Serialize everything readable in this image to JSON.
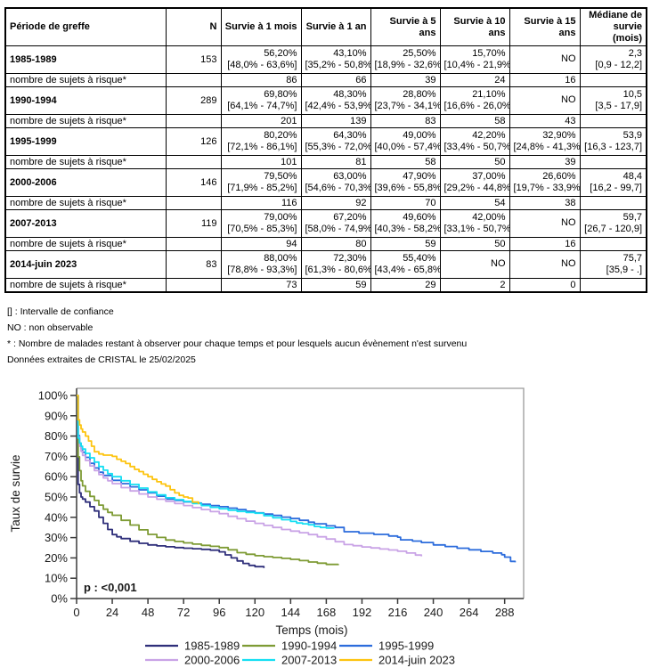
{
  "table": {
    "headers": [
      "Période de greffe",
      "N",
      "Survie à 1 mois",
      "Survie à 1 an",
      "Survie à 5 ans",
      "Survie à 10 ans",
      "Survie à 15 ans",
      "Médiane de survie (mois)"
    ],
    "risk_label": "nombre de sujets à risque*",
    "rows": [
      {
        "period": "1985-1989",
        "n": "153",
        "cells": [
          {
            "v": "56,20%",
            "ci": "[48,0% - 63,6%]"
          },
          {
            "v": "43,10%",
            "ci": "[35,2% - 50,8%]"
          },
          {
            "v": "25,50%",
            "ci": "[18,9% - 32,6%]"
          },
          {
            "v": "15,70%",
            "ci": "[10,4% - 21,9%]"
          },
          {
            "v": "NO",
            "ci": ""
          },
          {
            "v": "2,3",
            "ci": "[0,9 - 12,2]"
          }
        ],
        "at_risk": [
          "86",
          "66",
          "39",
          "24",
          "16"
        ]
      },
      {
        "period": "1990-1994",
        "n": "289",
        "cells": [
          {
            "v": "69,80%",
            "ci": "[64,1% - 74,7%]"
          },
          {
            "v": "48,30%",
            "ci": "[42,4% - 53,9%]"
          },
          {
            "v": "28,80%",
            "ci": "[23,7% - 34,1%]"
          },
          {
            "v": "21,10%",
            "ci": "[16,6% - 26,0%]"
          },
          {
            "v": "NO",
            "ci": ""
          },
          {
            "v": "10,5",
            "ci": "[3,5 - 17,9]"
          }
        ],
        "at_risk": [
          "201",
          "139",
          "83",
          "58",
          "43"
        ]
      },
      {
        "period": "1995-1999",
        "n": "126",
        "cells": [
          {
            "v": "80,20%",
            "ci": "[72,1% - 86,1%]"
          },
          {
            "v": "64,30%",
            "ci": "[55,3% - 72,0%]"
          },
          {
            "v": "49,00%",
            "ci": "[40,0% - 57,4%]"
          },
          {
            "v": "42,20%",
            "ci": "[33,4% - 50,7%]"
          },
          {
            "v": "32,90%",
            "ci": "[24,8% - 41,3%]"
          },
          {
            "v": "53,9",
            "ci": "[16,3 - 123,7]"
          }
        ],
        "at_risk": [
          "101",
          "81",
          "58",
          "50",
          "39"
        ]
      },
      {
        "period": "2000-2006",
        "n": "146",
        "cells": [
          {
            "v": "79,50%",
            "ci": "[71,9% - 85,2%]"
          },
          {
            "v": "63,00%",
            "ci": "[54,6% - 70,3%]"
          },
          {
            "v": "47,90%",
            "ci": "[39,6% - 55,8%]"
          },
          {
            "v": "37,00%",
            "ci": "[29,2% - 44,8%]"
          },
          {
            "v": "26,60%",
            "ci": "[19,7% - 33,9%]"
          },
          {
            "v": "48,4",
            "ci": "[16,2 - 99,7]"
          }
        ],
        "at_risk": [
          "116",
          "92",
          "70",
          "54",
          "38"
        ]
      },
      {
        "period": "2007-2013",
        "n": "119",
        "cells": [
          {
            "v": "79,00%",
            "ci": "[70,5% - 85,3%]"
          },
          {
            "v": "67,20%",
            "ci": "[58,0% - 74,9%]"
          },
          {
            "v": "49,60%",
            "ci": "[40,3% - 58,2%]"
          },
          {
            "v": "42,00%",
            "ci": "[33,1% - 50,7%]"
          },
          {
            "v": "NO",
            "ci": ""
          },
          {
            "v": "59,7",
            "ci": "[26,7 - 120,9]"
          }
        ],
        "at_risk": [
          "94",
          "80",
          "59",
          "50",
          "16"
        ]
      },
      {
        "period": "2014-juin 2023",
        "n": "83",
        "cells": [
          {
            "v": "88,00%",
            "ci": "[78,8% - 93,3%]"
          },
          {
            "v": "72,30%",
            "ci": "[61,3% - 80,6%]"
          },
          {
            "v": "55,40%",
            "ci": "[43,4% - 65,8%]"
          },
          {
            "v": "NO",
            "ci": ""
          },
          {
            "v": "NO",
            "ci": ""
          },
          {
            "v": "75,7",
            "ci": "[35,9 - .]"
          }
        ],
        "at_risk": [
          "73",
          "59",
          "29",
          "2",
          "0"
        ]
      }
    ]
  },
  "footnotes": [
    "[] : Intervalle de confiance",
    "NO : non observable",
    "* : Nombre de malades restant à observer pour chaque temps et pour lesquels aucun évènement n'est survenu",
    "Données extraites de CRISTAL le 25/02/2025"
  ],
  "chart_data": {
    "type": "line",
    "subtype": "kaplan-meier-step",
    "title": "",
    "xlabel": "Temps (mois)",
    "ylabel": "Taux de survie",
    "annotation": "p : <0,001",
    "xlim": [
      0,
      300
    ],
    "ylim": [
      0,
      100
    ],
    "x_ticks": [
      0,
      24,
      48,
      72,
      96,
      120,
      144,
      168,
      192,
      216,
      240,
      264,
      288
    ],
    "y_ticks": [
      0,
      10,
      20,
      30,
      40,
      50,
      60,
      70,
      80,
      90,
      100
    ],
    "y_tick_suffix": "%",
    "grid": false,
    "legend_position": "bottom",
    "series": [
      {
        "name": "1985-1989",
        "color": "#2f2f7a",
        "points": [
          [
            0,
            100
          ],
          [
            1,
            56.2
          ],
          [
            2,
            52
          ],
          [
            3,
            50
          ],
          [
            4,
            49
          ],
          [
            6,
            47.5
          ],
          [
            9,
            45.2
          ],
          [
            12,
            43.1
          ],
          [
            15,
            40
          ],
          [
            18,
            37
          ],
          [
            21,
            34
          ],
          [
            24,
            31.5
          ],
          [
            27,
            30.4
          ],
          [
            30,
            29.5
          ],
          [
            36,
            28.2
          ],
          [
            42,
            27.2
          ],
          [
            48,
            26.4
          ],
          [
            54,
            25.9
          ],
          [
            60,
            25.5
          ],
          [
            66,
            25.1
          ],
          [
            72,
            24.8
          ],
          [
            78,
            24.5
          ],
          [
            84,
            24.2
          ],
          [
            90,
            23.8
          ],
          [
            96,
            23
          ],
          [
            100,
            21.5
          ],
          [
            104,
            20
          ],
          [
            108,
            18.5
          ],
          [
            112,
            17.3
          ],
          [
            116,
            16.3
          ],
          [
            120,
            15.7
          ],
          [
            126,
            15
          ]
        ]
      },
      {
        "name": "1990-1994",
        "color": "#7e9b34",
        "points": [
          [
            0,
            100
          ],
          [
            1,
            69.8
          ],
          [
            2,
            63
          ],
          [
            3,
            58
          ],
          [
            4,
            55.5
          ],
          [
            6,
            52.8
          ],
          [
            9,
            50.3
          ],
          [
            12,
            48.3
          ],
          [
            15,
            46
          ],
          [
            18,
            44
          ],
          [
            21,
            42.4
          ],
          [
            24,
            41
          ],
          [
            30,
            38.5
          ],
          [
            36,
            36.2
          ],
          [
            42,
            33.8
          ],
          [
            48,
            31.6
          ],
          [
            54,
            30.1
          ],
          [
            60,
            28.8
          ],
          [
            66,
            28.1
          ],
          [
            72,
            27.4
          ],
          [
            78,
            26.8
          ],
          [
            84,
            26.2
          ],
          [
            90,
            25.7
          ],
          [
            96,
            25.1
          ],
          [
            102,
            24
          ],
          [
            108,
            22.6
          ],
          [
            114,
            21.8
          ],
          [
            120,
            21.1
          ],
          [
            126,
            20.6
          ],
          [
            132,
            20.2
          ],
          [
            138,
            19.8
          ],
          [
            144,
            19.3
          ],
          [
            150,
            18.7
          ],
          [
            156,
            18
          ],
          [
            162,
            17.4
          ],
          [
            168,
            16.8
          ],
          [
            176,
            16.4
          ]
        ]
      },
      {
        "name": "1995-1999",
        "color": "#2c6cdc",
        "points": [
          [
            0,
            100
          ],
          [
            1,
            80.2
          ],
          [
            2,
            76.5
          ],
          [
            3,
            74
          ],
          [
            4,
            72
          ],
          [
            6,
            69.5
          ],
          [
            9,
            66.6
          ],
          [
            12,
            64.3
          ],
          [
            15,
            62.2
          ],
          [
            18,
            60.6
          ],
          [
            24,
            58.2
          ],
          [
            30,
            56.6
          ],
          [
            36,
            55
          ],
          [
            42,
            53.5
          ],
          [
            48,
            52
          ],
          [
            54,
            50.4
          ],
          [
            60,
            49
          ],
          [
            66,
            48.3
          ],
          [
            72,
            47.6
          ],
          [
            78,
            47
          ],
          [
            84,
            46.4
          ],
          [
            90,
            45.8
          ],
          [
            96,
            45.2
          ],
          [
            102,
            44.5
          ],
          [
            108,
            43.8
          ],
          [
            114,
            43
          ],
          [
            120,
            42.2
          ],
          [
            126,
            41.6
          ],
          [
            132,
            40.9
          ],
          [
            138,
            40.1
          ],
          [
            144,
            39.4
          ],
          [
            150,
            38.5
          ],
          [
            156,
            37.6
          ],
          [
            160,
            36.8
          ],
          [
            168,
            35.8
          ],
          [
            174,
            35
          ],
          [
            180,
            32.9
          ],
          [
            190,
            32.2
          ],
          [
            200,
            31.6
          ],
          [
            210,
            30.8
          ],
          [
            216,
            30.2
          ],
          [
            218,
            28.9
          ],
          [
            226,
            28.3
          ],
          [
            232,
            27.6
          ],
          [
            240,
            26.4
          ],
          [
            248,
            25.6
          ],
          [
            256,
            24.8
          ],
          [
            264,
            24
          ],
          [
            272,
            23.2
          ],
          [
            280,
            22.4
          ],
          [
            286,
            21.6
          ],
          [
            288,
            20.4
          ],
          [
            292,
            18.3
          ],
          [
            295,
            17.8
          ]
        ]
      },
      {
        "name": "2000-2006",
        "color": "#c9a3e6",
        "points": [
          [
            0,
            100
          ],
          [
            1,
            79.5
          ],
          [
            2,
            75
          ],
          [
            3,
            72.5
          ],
          [
            4,
            70.5
          ],
          [
            6,
            68
          ],
          [
            9,
            65.3
          ],
          [
            12,
            63
          ],
          [
            15,
            61
          ],
          [
            18,
            59.4
          ],
          [
            21,
            58
          ],
          [
            24,
            56.6
          ],
          [
            30,
            54.6
          ],
          [
            36,
            53
          ],
          [
            42,
            51.5
          ],
          [
            48,
            50
          ],
          [
            54,
            48.9
          ],
          [
            60,
            47.9
          ],
          [
            66,
            46.8
          ],
          [
            72,
            45.8
          ],
          [
            78,
            44.8
          ],
          [
            84,
            43.8
          ],
          [
            90,
            42.8
          ],
          [
            96,
            41.8
          ],
          [
            102,
            40.5
          ],
          [
            108,
            39.3
          ],
          [
            114,
            38.1
          ],
          [
            120,
            37
          ],
          [
            126,
            36
          ],
          [
            132,
            35
          ],
          [
            138,
            34
          ],
          [
            144,
            33.2
          ],
          [
            150,
            32.4
          ],
          [
            156,
            31.5
          ],
          [
            162,
            30.4
          ],
          [
            168,
            29.3
          ],
          [
            174,
            28
          ],
          [
            180,
            26.6
          ],
          [
            186,
            26
          ],
          [
            192,
            25.4
          ],
          [
            198,
            24.9
          ],
          [
            204,
            24.4
          ],
          [
            210,
            23.9
          ],
          [
            216,
            23.3
          ],
          [
            222,
            22.4
          ],
          [
            228,
            21.4
          ],
          [
            232,
            20.8
          ]
        ]
      },
      {
        "name": "2007-2013",
        "color": "#16dff2",
        "points": [
          [
            0,
            100
          ],
          [
            1,
            79
          ],
          [
            2,
            76.6
          ],
          [
            3,
            75
          ],
          [
            4,
            73.6
          ],
          [
            6,
            71.5
          ],
          [
            9,
            69.3
          ],
          [
            12,
            67.2
          ],
          [
            15,
            65
          ],
          [
            18,
            63.2
          ],
          [
            21,
            61.5
          ],
          [
            24,
            60
          ],
          [
            30,
            58
          ],
          [
            36,
            56.2
          ],
          [
            42,
            54.4
          ],
          [
            48,
            52.5
          ],
          [
            54,
            51
          ],
          [
            60,
            49.6
          ],
          [
            66,
            48.7
          ],
          [
            72,
            47.8
          ],
          [
            78,
            46.8
          ],
          [
            84,
            45.8
          ],
          [
            90,
            44.9
          ],
          [
            96,
            44.2
          ],
          [
            102,
            43.5
          ],
          [
            108,
            42.9
          ],
          [
            114,
            42.4
          ],
          [
            120,
            42
          ],
          [
            126,
            40.8
          ],
          [
            132,
            39.8
          ],
          [
            138,
            38.8
          ],
          [
            144,
            38
          ],
          [
            148,
            37.2
          ],
          [
            152,
            36.8
          ],
          [
            156,
            36.3
          ],
          [
            160,
            35.5
          ],
          [
            164,
            35
          ],
          [
            168,
            34.7
          ],
          [
            173,
            34.4
          ]
        ]
      },
      {
        "name": "2014-juin 2023",
        "color": "#fdc410",
        "points": [
          [
            0,
            100
          ],
          [
            1,
            88
          ],
          [
            2,
            85.5
          ],
          [
            3,
            83.5
          ],
          [
            4,
            82
          ],
          [
            6,
            80
          ],
          [
            8,
            77.6
          ],
          [
            10,
            75
          ],
          [
            12,
            72.3
          ],
          [
            15,
            71.2
          ],
          [
            18,
            70.6
          ],
          [
            24,
            70
          ],
          [
            27,
            68.6
          ],
          [
            30,
            67.6
          ],
          [
            33,
            66.5
          ],
          [
            36,
            65
          ],
          [
            39,
            63.6
          ],
          [
            42,
            62.5
          ],
          [
            45,
            61.2
          ],
          [
            48,
            60
          ],
          [
            51,
            58.7
          ],
          [
            54,
            57.5
          ],
          [
            57,
            56.4
          ],
          [
            60,
            55.4
          ],
          [
            63,
            53.6
          ],
          [
            66,
            52
          ],
          [
            69,
            50.8
          ],
          [
            72,
            50
          ],
          [
            75,
            49.5
          ],
          [
            78,
            47.5
          ],
          [
            82,
            46.5
          ]
        ]
      }
    ]
  }
}
